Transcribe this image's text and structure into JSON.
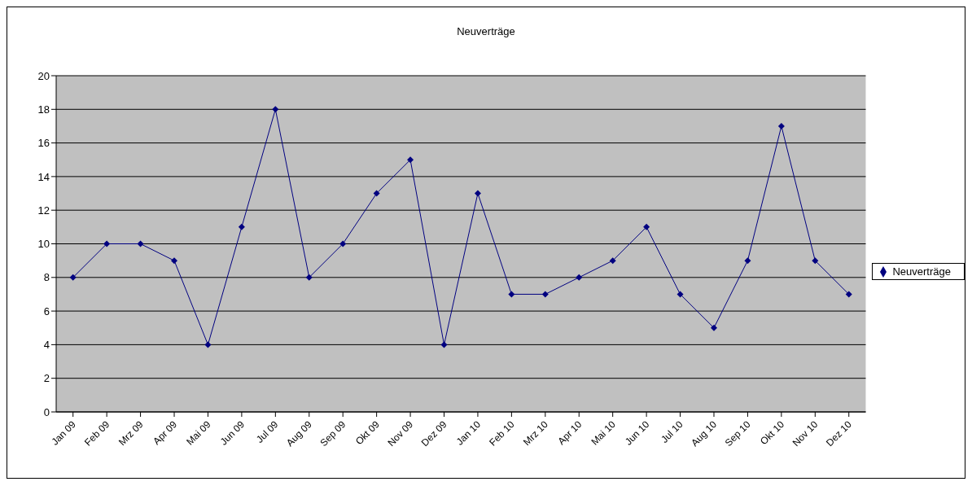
{
  "chart_data": {
    "type": "line",
    "title": "Neuverträge",
    "categories": [
      "Jan 09",
      "Feb 09",
      "Mrz 09",
      "Apr 09",
      "Mai 09",
      "Jun 09",
      "Jul 09",
      "Aug 09",
      "Sep 09",
      "Okt 09",
      "Nov 09",
      "Dez 09",
      "Jan 10",
      "Feb 10",
      "Mrz 10",
      "Apr 10",
      "Mai 10",
      "Jun 10",
      "Jul 10",
      "Aug 10",
      "Sep 10",
      "Okt 10",
      "Nov 10",
      "Dez 10"
    ],
    "series": [
      {
        "name": "Neuverträge",
        "color": "#000080",
        "values": [
          8,
          10,
          10,
          9,
          4,
          11,
          18,
          8,
          10,
          13,
          15,
          4,
          13,
          7,
          7,
          8,
          9,
          11,
          7,
          5,
          9,
          17,
          9,
          7
        ]
      }
    ],
    "ylim": [
      0,
      20
    ],
    "yticks": [
      0,
      2,
      4,
      6,
      8,
      10,
      12,
      14,
      16,
      18,
      20
    ],
    "grid": "y",
    "legend": "right",
    "marker": "diamond",
    "line_style": "solid"
  }
}
